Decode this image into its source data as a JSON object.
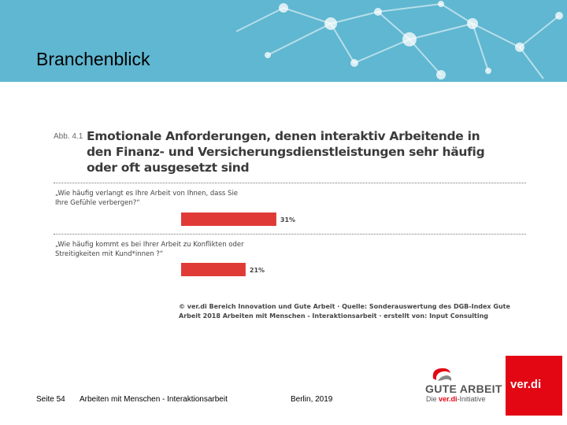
{
  "slide": {
    "title": "Branchenblick"
  },
  "figure": {
    "label": "Abb. 4.1",
    "title": "Emotionale Anforderungen, denen interaktiv Arbeitende in den Finanz- und Versicherungsdienstleistungen sehr häufig oder oft ausgesetzt sind",
    "source": "© ver.di Bereich Innovation und Gute Arbeit · Quelle: Sonderauswertung des DGB-Index Gute Arbeit 2018 Arbeiten mit Menschen - Interaktionsarbeit · erstellt von: Input Consulting"
  },
  "chart_data": {
    "type": "bar",
    "orientation": "horizontal",
    "categories": [
      "„Wie häufig verlangt es Ihre Arbeit von Ihnen, dass Sie Ihre Gefühle verbergen?“",
      "„Wie häufig kommt es bei Ihrer Arbeit zu Konflikten oder Streitigkeiten mit Kund*innen ?“"
    ],
    "values": [
      31,
      21
    ],
    "value_labels": [
      "31%",
      "21%"
    ],
    "unit": "%",
    "bar_color": "#e03a36",
    "grid": false,
    "legend": "none"
  },
  "footer": {
    "page": "Seite 54",
    "topic": "Arbeiten mit Menschen - Interaktionsarbeit",
    "date": "Berlin, 2019"
  },
  "logos": {
    "gute_arbeit_title": "GUTE ARBEIT",
    "gute_arbeit_sub_prefix": "Die ",
    "gute_arbeit_sub_brand": "ver.di",
    "gute_arbeit_sub_suffix": "-Initiative",
    "verdi": "ver.di"
  },
  "colors": {
    "header": "#5fb7d1",
    "bar": "#e03a36",
    "brand_red": "#e30613"
  }
}
